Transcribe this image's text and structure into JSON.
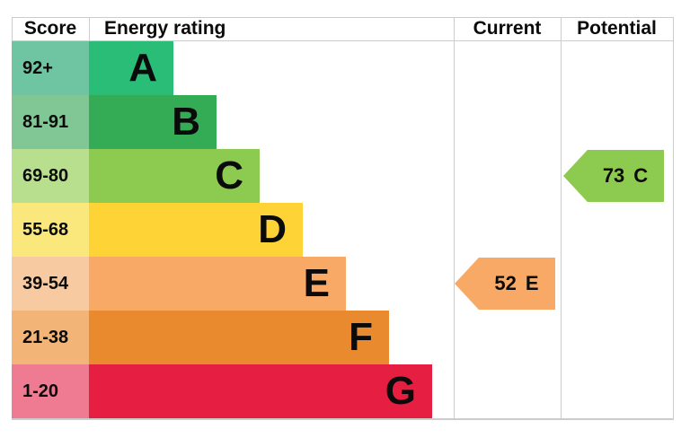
{
  "table": {
    "headers": {
      "score": "Score",
      "rating": "Energy rating",
      "current": "Current",
      "potential": "Potential"
    }
  },
  "chart_data": {
    "type": "bar",
    "title": "Energy rating",
    "columns": [
      "Score",
      "Energy rating",
      "Current",
      "Potential"
    ],
    "bands": [
      {
        "letter": "A",
        "score_range": "92+",
        "bar_color": "#2abd77",
        "score_bg": "#6fc5a2"
      },
      {
        "letter": "B",
        "score_range": "81-91",
        "bar_color": "#33ac55",
        "score_bg": "#80c795"
      },
      {
        "letter": "C",
        "score_range": "69-80",
        "bar_color": "#8ccb50",
        "score_bg": "#b8df8e"
      },
      {
        "letter": "D",
        "score_range": "55-68",
        "bar_color": "#fdd335",
        "score_bg": "#fae87d"
      },
      {
        "letter": "E",
        "score_range": "39-54",
        "bar_color": "#f8a966",
        "score_bg": "#f7caa1"
      },
      {
        "letter": "F",
        "score_range": "21-38",
        "bar_color": "#ea8a2f",
        "score_bg": "#f2b477"
      },
      {
        "letter": "G",
        "score_range": "1-20",
        "bar_color": "#e61e42",
        "score_bg": "#ee7b91"
      }
    ],
    "current": {
      "value": "52",
      "letter": "E",
      "color": "#f8a966"
    },
    "potential": {
      "value": "73",
      "letter": "C",
      "color": "#8ccb50"
    },
    "grid_color": "#cccccc"
  }
}
